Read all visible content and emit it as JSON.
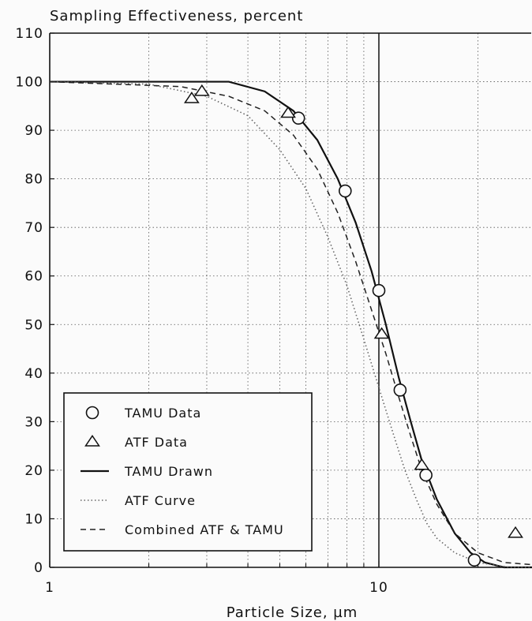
{
  "chart_data": {
    "type": "scatter",
    "title": "",
    "ylabel": "Sampling Effectiveness, percent",
    "xlabel": "Particle Size, µm",
    "xscale": "log",
    "xlim": [
      1,
      30
    ],
    "ylim": [
      0,
      110
    ],
    "x_ticks": [
      1,
      10
    ],
    "x_tick_labels": [
      "1",
      "10"
    ],
    "y_ticks": [
      0,
      10,
      20,
      30,
      40,
      50,
      60,
      70,
      80,
      90,
      100,
      110
    ],
    "grid": true,
    "vertical_reference_line": 10,
    "legend_position": "bottom-left",
    "series": [
      {
        "name": "TAMU Data",
        "kind": "marker",
        "marker": "circle",
        "points": [
          [
            5.7,
            92.5
          ],
          [
            7.9,
            77.5
          ],
          [
            10.0,
            57.0
          ],
          [
            11.6,
            36.5
          ],
          [
            13.9,
            19.0
          ],
          [
            19.5,
            1.5
          ]
        ]
      },
      {
        "name": "ATF Data",
        "kind": "marker",
        "marker": "triangle",
        "points": [
          [
            2.7,
            96.5
          ],
          [
            2.9,
            98.0
          ],
          [
            5.3,
            93.5
          ],
          [
            10.2,
            48.0
          ],
          [
            13.5,
            21.0
          ],
          [
            26.0,
            7.0
          ]
        ]
      },
      {
        "name": "TAMU Drawn",
        "kind": "line",
        "style": "solid",
        "points": [
          [
            1,
            100
          ],
          [
            3.5,
            100
          ],
          [
            4.5,
            98
          ],
          [
            5.5,
            94
          ],
          [
            6.5,
            88
          ],
          [
            7.5,
            80
          ],
          [
            8.5,
            71
          ],
          [
            9.5,
            61
          ],
          [
            10.5,
            50
          ],
          [
            11.5,
            39
          ],
          [
            12.5,
            30
          ],
          [
            13.5,
            22
          ],
          [
            15,
            14
          ],
          [
            17,
            7
          ],
          [
            19,
            3
          ],
          [
            21,
            1
          ],
          [
            24,
            0
          ],
          [
            30,
            0
          ]
        ]
      },
      {
        "name": "ATF Curve",
        "kind": "line",
        "style": "dotted",
        "points": [
          [
            1,
            100
          ],
          [
            2,
            99.5
          ],
          [
            3,
            97
          ],
          [
            4,
            93
          ],
          [
            5,
            86
          ],
          [
            6,
            78
          ],
          [
            7,
            68
          ],
          [
            8,
            58
          ],
          [
            9,
            47
          ],
          [
            10,
            37
          ],
          [
            11,
            28
          ],
          [
            12,
            20
          ],
          [
            13,
            14
          ],
          [
            14,
            9
          ],
          [
            15,
            6
          ],
          [
            17,
            3
          ],
          [
            20,
            1
          ],
          [
            25,
            0
          ],
          [
            30,
            0
          ]
        ]
      },
      {
        "name": "Combined ATF & TAMU",
        "kind": "line",
        "style": "dashed",
        "points": [
          [
            1,
            100
          ],
          [
            2.5,
            99
          ],
          [
            3.5,
            97
          ],
          [
            4.5,
            94
          ],
          [
            5.5,
            89
          ],
          [
            6.5,
            82
          ],
          [
            7.5,
            73
          ],
          [
            8.5,
            63
          ],
          [
            9.5,
            53
          ],
          [
            10.5,
            44
          ],
          [
            11.5,
            35
          ],
          [
            12.5,
            27
          ],
          [
            13.5,
            20
          ],
          [
            15,
            13
          ],
          [
            17,
            7
          ],
          [
            20,
            3
          ],
          [
            24,
            1
          ],
          [
            30,
            0.5
          ]
        ]
      }
    ]
  }
}
